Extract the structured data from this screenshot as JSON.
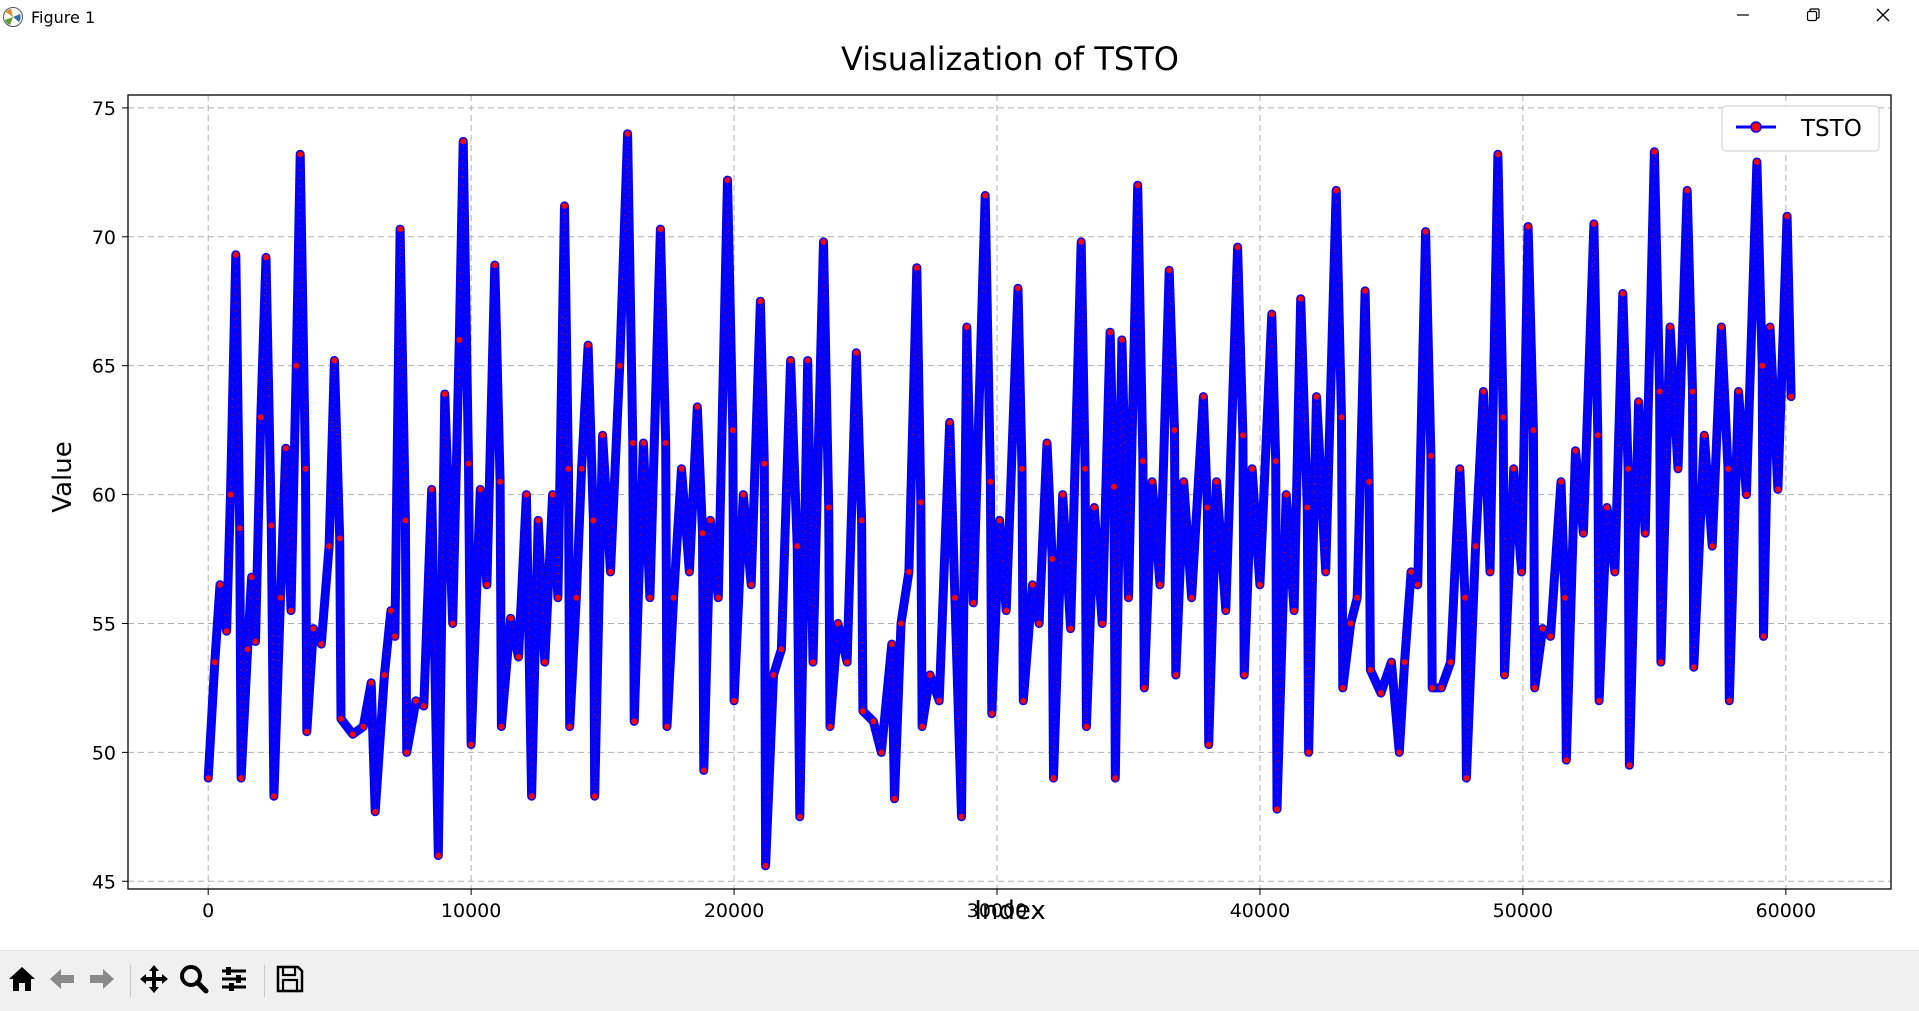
{
  "window": {
    "title": "Figure 1",
    "minimize_icon": "minimize-icon",
    "restore_icon": "restore-icon",
    "close_icon": "close-icon"
  },
  "toolbar": {
    "buttons": [
      {
        "name": "home-button",
        "icon": "home-icon"
      },
      {
        "name": "back-button",
        "icon": "back-arrow-icon"
      },
      {
        "name": "forward-button",
        "icon": "forward-arrow-icon"
      },
      {
        "name": "pan-button",
        "icon": "move-icon"
      },
      {
        "name": "zoom-button",
        "icon": "zoom-icon"
      },
      {
        "name": "configure-subplots-button",
        "icon": "sliders-icon"
      },
      {
        "name": "save-button",
        "icon": "save-icon"
      }
    ]
  },
  "chart_data": {
    "type": "line",
    "title": "Visualization of TSTO",
    "xlabel": "Index",
    "ylabel": "Value",
    "xlim": [
      -3050,
      64000
    ],
    "ylim": [
      44.7,
      75.5
    ],
    "xticks": [
      0,
      10000,
      20000,
      30000,
      40000,
      50000,
      60000
    ],
    "xtick_labels": [
      "0",
      "10000",
      "20000",
      "30000",
      "40000",
      "50000",
      "60000"
    ],
    "yticks": [
      45,
      50,
      55,
      60,
      65,
      70,
      75
    ],
    "ytick_labels": [
      "45",
      "50",
      "55",
      "60",
      "65",
      "70",
      "75"
    ],
    "grid": true,
    "legend_position": "top-right",
    "line_color": "#0000ff",
    "marker_color": "#ff0000",
    "series": [
      {
        "name": "TSTO",
        "points": [
          [
            0,
            49.0
          ],
          [
            250,
            53.5
          ],
          [
            450,
            56.5
          ],
          [
            700,
            54.7
          ],
          [
            850,
            60.0
          ],
          [
            1050,
            69.3
          ],
          [
            1200,
            58.7
          ],
          [
            1250,
            49.0
          ],
          [
            1500,
            54.0
          ],
          [
            1650,
            56.8
          ],
          [
            1800,
            54.3
          ],
          [
            2000,
            63.0
          ],
          [
            2200,
            69.2
          ],
          [
            2400,
            58.8
          ],
          [
            2500,
            48.3
          ],
          [
            2750,
            56.0
          ],
          [
            2950,
            61.8
          ],
          [
            3150,
            55.5
          ],
          [
            3350,
            65.0
          ],
          [
            3500,
            73.2
          ],
          [
            3700,
            61.0
          ],
          [
            3750,
            50.8
          ],
          [
            4000,
            54.8
          ],
          [
            4300,
            54.2
          ],
          [
            4600,
            58.0
          ],
          [
            4800,
            65.2
          ],
          [
            5000,
            58.3
          ],
          [
            5050,
            51.3
          ],
          [
            5500,
            50.7
          ],
          [
            5900,
            51.0
          ],
          [
            6200,
            52.7
          ],
          [
            6350,
            47.7
          ],
          [
            6700,
            53.0
          ],
          [
            6950,
            55.5
          ],
          [
            7100,
            54.5
          ],
          [
            7300,
            70.3
          ],
          [
            7500,
            59.0
          ],
          [
            7550,
            50.0
          ],
          [
            7900,
            52.0
          ],
          [
            8200,
            51.8
          ],
          [
            8500,
            60.2
          ],
          [
            8750,
            46.0
          ],
          [
            9000,
            63.9
          ],
          [
            9300,
            55.0
          ],
          [
            9550,
            66.0
          ],
          [
            9700,
            73.7
          ],
          [
            9900,
            61.2
          ],
          [
            10000,
            50.3
          ],
          [
            10350,
            60.2
          ],
          [
            10600,
            56.5
          ],
          [
            10900,
            68.9
          ],
          [
            11100,
            60.5
          ],
          [
            11150,
            51.0
          ],
          [
            11500,
            55.2
          ],
          [
            11800,
            53.7
          ],
          [
            12100,
            60.0
          ],
          [
            12300,
            48.3
          ],
          [
            12550,
            59.0
          ],
          [
            12800,
            53.5
          ],
          [
            13100,
            60.0
          ],
          [
            13300,
            56.0
          ],
          [
            13550,
            71.2
          ],
          [
            13700,
            61.0
          ],
          [
            13750,
            51.0
          ],
          [
            14000,
            56.0
          ],
          [
            14200,
            61.0
          ],
          [
            14450,
            65.8
          ],
          [
            14650,
            59.0
          ],
          [
            14700,
            48.3
          ],
          [
            15000,
            62.3
          ],
          [
            15300,
            57.0
          ],
          [
            15650,
            65.0
          ],
          [
            15950,
            74.0
          ],
          [
            16150,
            62.0
          ],
          [
            16200,
            51.2
          ],
          [
            16550,
            62.0
          ],
          [
            16800,
            56.0
          ],
          [
            17200,
            70.3
          ],
          [
            17400,
            62.0
          ],
          [
            17450,
            51.0
          ],
          [
            17700,
            56.0
          ],
          [
            18000,
            61.0
          ],
          [
            18300,
            57.0
          ],
          [
            18600,
            63.4
          ],
          [
            18800,
            58.5
          ],
          [
            18850,
            49.3
          ],
          [
            19100,
            59.0
          ],
          [
            19400,
            56.0
          ],
          [
            19750,
            72.2
          ],
          [
            19950,
            62.5
          ],
          [
            20000,
            52.0
          ],
          [
            20350,
            60.0
          ],
          [
            20650,
            56.5
          ],
          [
            21000,
            67.5
          ],
          [
            21150,
            61.2
          ],
          [
            21200,
            45.6
          ],
          [
            21500,
            53.0
          ],
          [
            21800,
            54.0
          ],
          [
            22150,
            65.2
          ],
          [
            22400,
            58.0
          ],
          [
            22500,
            47.5
          ],
          [
            22800,
            65.2
          ],
          [
            23000,
            53.5
          ],
          [
            23400,
            69.8
          ],
          [
            23600,
            59.5
          ],
          [
            23650,
            51.0
          ],
          [
            23950,
            55.0
          ],
          [
            24300,
            53.5
          ],
          [
            24650,
            65.5
          ],
          [
            24850,
            59.0
          ],
          [
            24900,
            51.6
          ],
          [
            25300,
            51.2
          ],
          [
            25600,
            50.0
          ],
          [
            26000,
            54.2
          ],
          [
            26100,
            48.2
          ],
          [
            26350,
            55.0
          ],
          [
            26650,
            57.0
          ],
          [
            26950,
            68.8
          ],
          [
            27100,
            59.7
          ],
          [
            27150,
            51.0
          ],
          [
            27450,
            53.0
          ],
          [
            27800,
            52.0
          ],
          [
            28200,
            62.8
          ],
          [
            28400,
            56.0
          ],
          [
            28650,
            47.5
          ],
          [
            28850,
            66.5
          ],
          [
            29100,
            55.8
          ],
          [
            29550,
            71.6
          ],
          [
            29750,
            60.5
          ],
          [
            29800,
            51.5
          ],
          [
            30100,
            59.0
          ],
          [
            30350,
            55.5
          ],
          [
            30800,
            68.0
          ],
          [
            30950,
            61.0
          ],
          [
            31000,
            52.0
          ],
          [
            31350,
            56.5
          ],
          [
            31600,
            55.0
          ],
          [
            31900,
            62.0
          ],
          [
            32100,
            57.5
          ],
          [
            32150,
            49.0
          ],
          [
            32500,
            60.0
          ],
          [
            32800,
            54.8
          ],
          [
            33200,
            69.8
          ],
          [
            33350,
            61.0
          ],
          [
            33400,
            51.0
          ],
          [
            33700,
            59.5
          ],
          [
            34000,
            55.0
          ],
          [
            34300,
            66.3
          ],
          [
            34450,
            60.3
          ],
          [
            34500,
            49.0
          ],
          [
            34750,
            66.0
          ],
          [
            35000,
            56.0
          ],
          [
            35350,
            72.0
          ],
          [
            35550,
            61.3
          ],
          [
            35600,
            52.5
          ],
          [
            35900,
            60.5
          ],
          [
            36200,
            56.5
          ],
          [
            36550,
            68.7
          ],
          [
            36750,
            62.5
          ],
          [
            36800,
            53.0
          ],
          [
            37100,
            60.5
          ],
          [
            37400,
            56.0
          ],
          [
            37850,
            63.8
          ],
          [
            38000,
            59.5
          ],
          [
            38050,
            50.3
          ],
          [
            38350,
            60.5
          ],
          [
            38700,
            55.5
          ],
          [
            39150,
            69.6
          ],
          [
            39350,
            62.3
          ],
          [
            39400,
            53.0
          ],
          [
            39700,
            61.0
          ],
          [
            40000,
            56.5
          ],
          [
            40450,
            67.0
          ],
          [
            40600,
            61.3
          ],
          [
            40650,
            47.8
          ],
          [
            41000,
            60.0
          ],
          [
            41300,
            55.5
          ],
          [
            41550,
            67.6
          ],
          [
            41800,
            59.5
          ],
          [
            41850,
            50.0
          ],
          [
            42150,
            63.8
          ],
          [
            42500,
            57.0
          ],
          [
            42900,
            71.8
          ],
          [
            43100,
            63.0
          ],
          [
            43150,
            52.5
          ],
          [
            43450,
            55.0
          ],
          [
            43700,
            56.0
          ],
          [
            44000,
            67.9
          ],
          [
            44150,
            60.5
          ],
          [
            44200,
            53.2
          ],
          [
            44600,
            52.3
          ],
          [
            45000,
            53.5
          ],
          [
            45300,
            50.0
          ],
          [
            45500,
            53.5
          ],
          [
            45750,
            57.0
          ],
          [
            46000,
            56.5
          ],
          [
            46300,
            70.2
          ],
          [
            46500,
            61.5
          ],
          [
            46550,
            52.5
          ],
          [
            46900,
            52.5
          ],
          [
            47250,
            53.5
          ],
          [
            47600,
            61.0
          ],
          [
            47800,
            56.0
          ],
          [
            47850,
            49.0
          ],
          [
            48200,
            58.0
          ],
          [
            48500,
            64.0
          ],
          [
            48750,
            57.0
          ],
          [
            49050,
            73.2
          ],
          [
            49250,
            63.0
          ],
          [
            49300,
            53.0
          ],
          [
            49650,
            61.0
          ],
          [
            49950,
            57.0
          ],
          [
            50200,
            70.4
          ],
          [
            50400,
            62.5
          ],
          [
            50450,
            52.5
          ],
          [
            50750,
            54.8
          ],
          [
            51050,
            54.5
          ],
          [
            51450,
            60.5
          ],
          [
            51600,
            56.0
          ],
          [
            51650,
            49.7
          ],
          [
            52000,
            61.7
          ],
          [
            52300,
            58.5
          ],
          [
            52700,
            70.5
          ],
          [
            52850,
            62.3
          ],
          [
            52900,
            52.0
          ],
          [
            53200,
            59.5
          ],
          [
            53500,
            57.0
          ],
          [
            53800,
            67.8
          ],
          [
            54000,
            61.0
          ],
          [
            54050,
            49.5
          ],
          [
            54400,
            63.6
          ],
          [
            54650,
            58.5
          ],
          [
            55000,
            73.3
          ],
          [
            55200,
            64.0
          ],
          [
            55250,
            53.5
          ],
          [
            55600,
            66.5
          ],
          [
            55900,
            61.0
          ],
          [
            56250,
            71.8
          ],
          [
            56450,
            64.0
          ],
          [
            56500,
            53.3
          ],
          [
            56900,
            62.3
          ],
          [
            57200,
            58.0
          ],
          [
            57550,
            66.5
          ],
          [
            57800,
            61.0
          ],
          [
            57850,
            52.0
          ],
          [
            58200,
            64.0
          ],
          [
            58500,
            60.0
          ],
          [
            58900,
            72.9
          ],
          [
            59100,
            65.0
          ],
          [
            59150,
            54.5
          ],
          [
            59400,
            66.5
          ],
          [
            59700,
            60.2
          ],
          [
            60050,
            70.8
          ],
          [
            60200,
            63.8
          ]
        ]
      }
    ]
  }
}
